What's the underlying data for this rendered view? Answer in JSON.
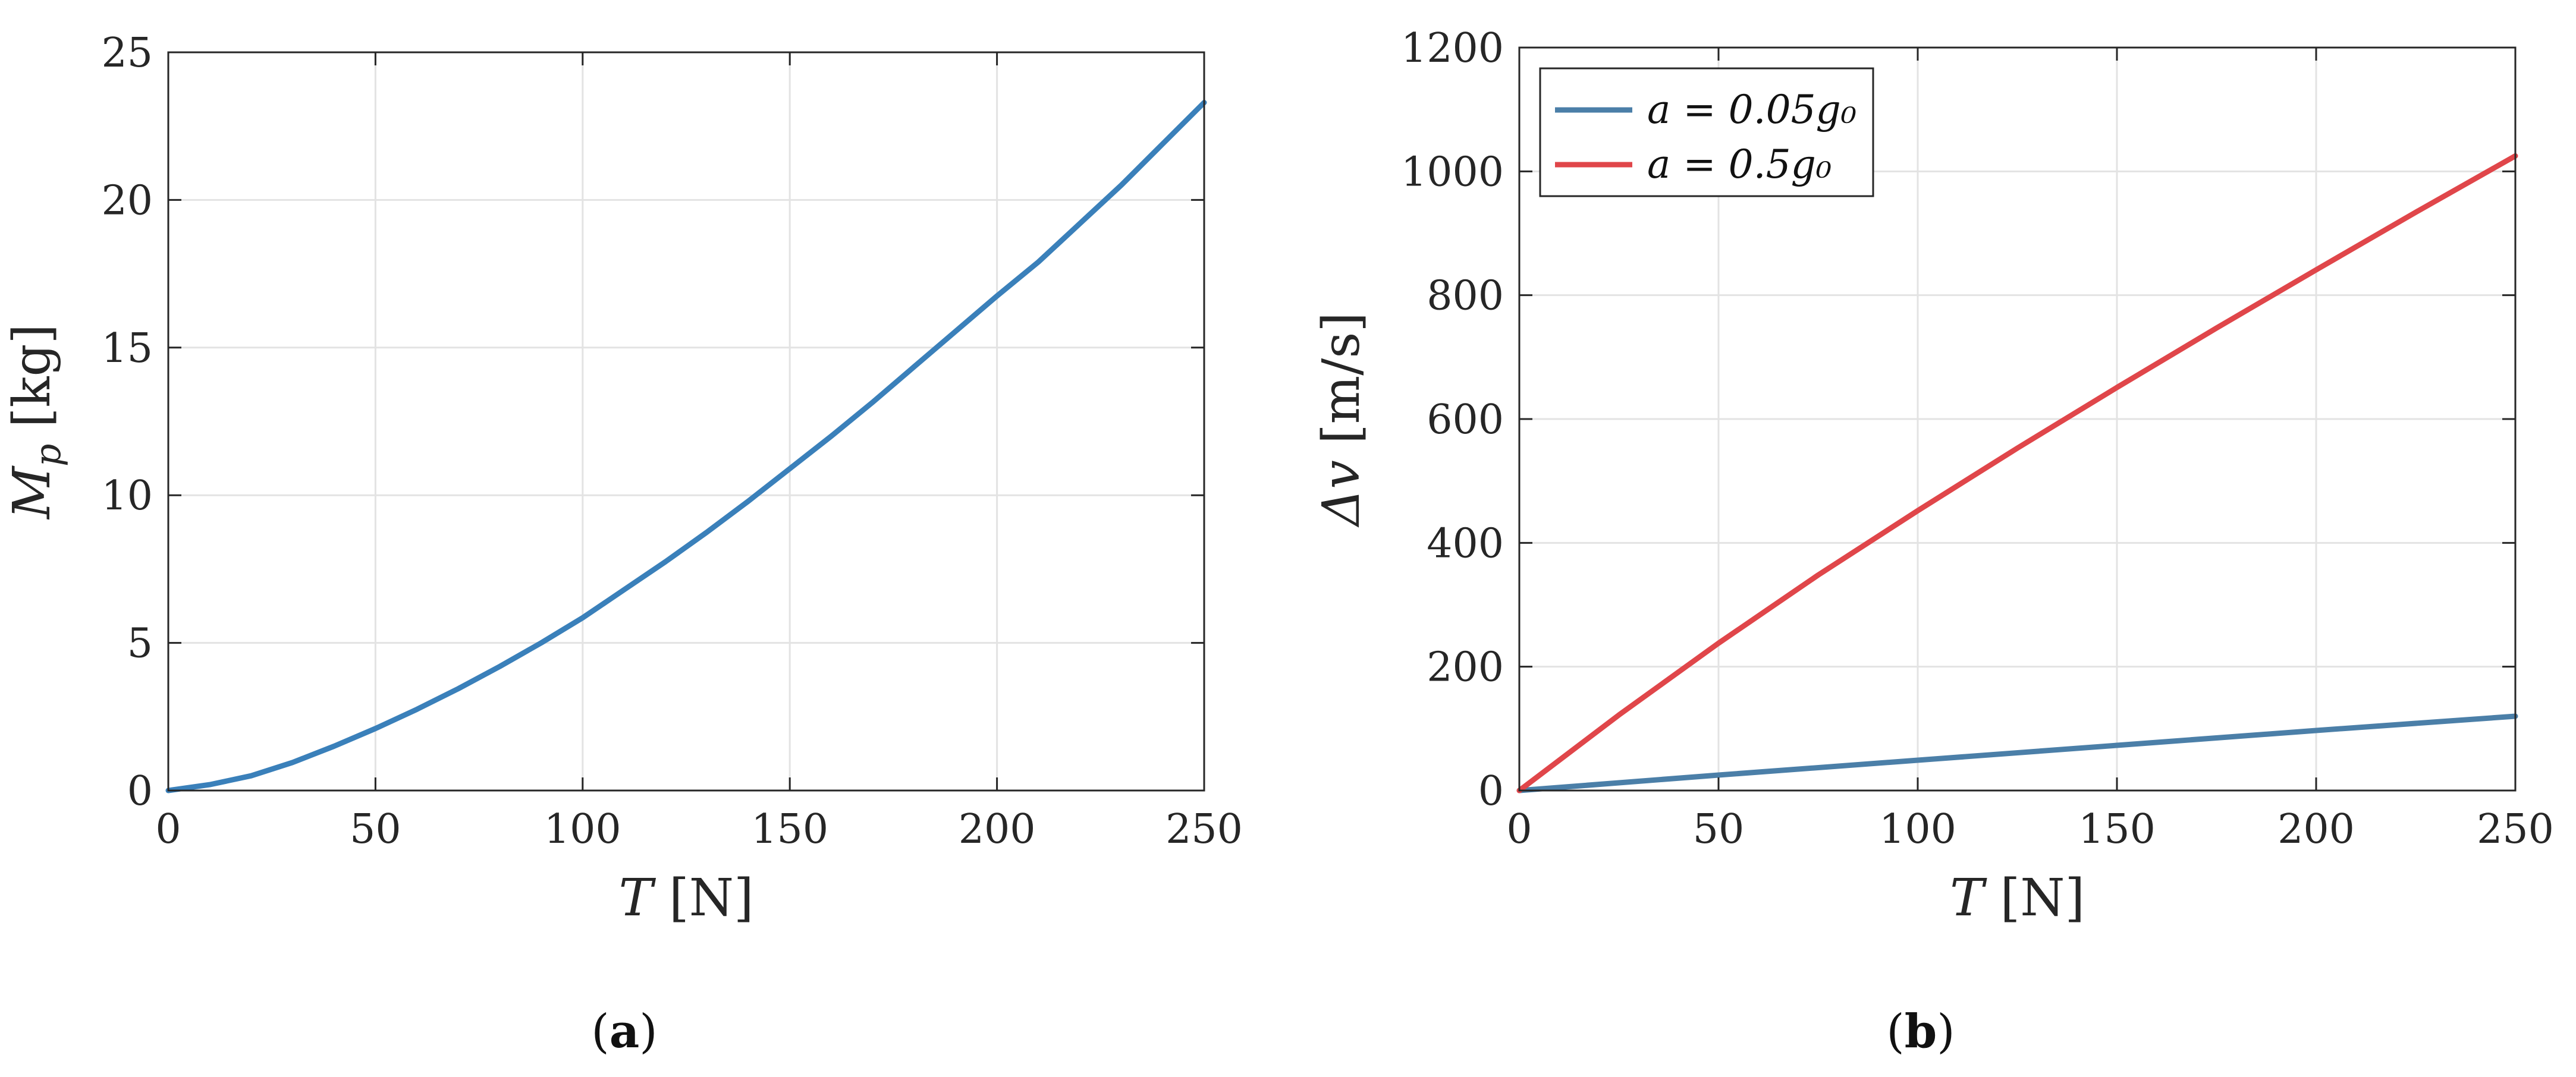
{
  "chart_data": [
    {
      "id": "a",
      "type": "line",
      "caption": "a",
      "xlabel": {
        "var": "T",
        "unit": "[N]"
      },
      "ylabel": {
        "var": "M",
        "sub": "p",
        "unit": "[kg]"
      },
      "xlim": [
        0,
        250
      ],
      "ylim": [
        0,
        25
      ],
      "xticks": [
        "0",
        "50",
        "100",
        "150",
        "200",
        "250"
      ],
      "yticks": [
        "0",
        "5",
        "10",
        "15",
        "20",
        "25"
      ],
      "grid": true,
      "series": [
        {
          "color": "#3A80BA",
          "x": [
            0,
            10,
            20,
            30,
            40,
            50,
            60,
            70,
            80,
            90,
            100,
            110,
            120,
            130,
            140,
            150,
            160,
            170,
            180,
            190,
            200,
            210,
            220,
            230,
            240,
            250
          ],
          "y": [
            0,
            0.2,
            0.5,
            0.95,
            1.5,
            2.1,
            2.75,
            3.45,
            4.2,
            5.0,
            5.85,
            6.8,
            7.75,
            8.75,
            9.8,
            10.9,
            12.0,
            13.15,
            14.35,
            15.55,
            16.75,
            17.9,
            19.2,
            20.5,
            21.9,
            23.3
          ]
        }
      ]
    },
    {
      "id": "b",
      "type": "line",
      "caption": "b",
      "xlabel": {
        "var": "T",
        "unit": "[N]"
      },
      "ylabel": {
        "var": "Δv",
        "unit": "[m/s]"
      },
      "xlim": [
        0,
        250
      ],
      "ylim": [
        0,
        1200
      ],
      "xticks": [
        "0",
        "50",
        "100",
        "150",
        "200",
        "250"
      ],
      "yticks": [
        "0",
        "200",
        "400",
        "600",
        "800",
        "1000",
        "1200"
      ],
      "grid": true,
      "legend": "top-left",
      "series": [
        {
          "name": "a = 0.05g₀",
          "color": "#4B7FA8",
          "x": [
            0,
            50,
            100,
            150,
            200,
            250
          ],
          "y": [
            0,
            25,
            49,
            73,
            97,
            120
          ]
        },
        {
          "name": "a = 0.5g₀",
          "color": "#E0464A",
          "x": [
            0,
            25,
            50,
            75,
            100,
            125,
            150,
            175,
            200,
            225,
            250
          ],
          "y": [
            0,
            122,
            238,
            348,
            452,
            553,
            651,
            747,
            841,
            934,
            1025
          ]
        }
      ]
    }
  ]
}
